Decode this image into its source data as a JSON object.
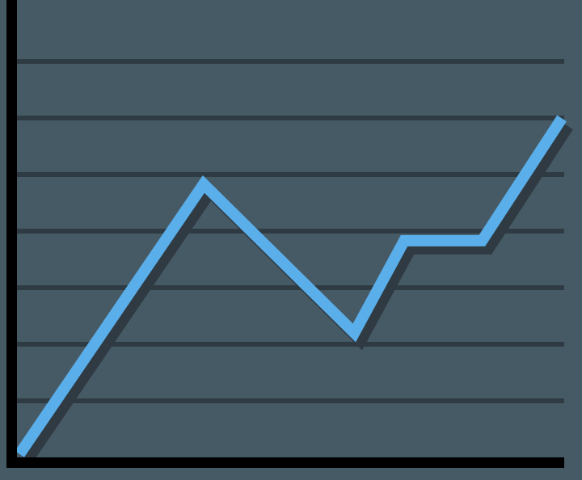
{
  "chart_data": {
    "type": "line",
    "x": [
      0.12,
      3.42,
      6.17,
      7.08,
      8.5,
      9.9
    ],
    "series": [
      {
        "color": "#5aaeea",
        "values": [
          0.14,
          4.83,
          2.2,
          3.83,
          3.83,
          5.91
        ]
      }
    ],
    "xlim": [
      0,
      10
    ],
    "ylim": [
      0,
      8
    ],
    "yticks": [
      1,
      2,
      3,
      4,
      5,
      6,
      7
    ],
    "grid": true
  }
}
